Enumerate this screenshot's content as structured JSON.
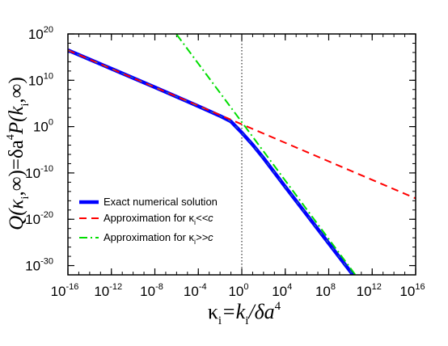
{
  "chart_data": {
    "type": "line",
    "x_scale": "log",
    "y_scale": "log",
    "xlim": [
      1e-16,
      1e+16
    ],
    "ylim": [
      1e-32,
      1e+20
    ],
    "x_ticks": [
      -16,
      -12,
      -8,
      -4,
      0,
      4,
      8,
      12,
      16
    ],
    "y_ticks": [
      -30,
      -20,
      -10,
      0,
      10,
      20
    ],
    "tick_base": "10",
    "xlabel": {
      "main": "κ",
      "sub": "i",
      "eq": "=k",
      "sub2": "i",
      "tail": "/δa",
      "sup": "4"
    },
    "ylabel": {
      "q": "Q(κ",
      "sub": "i",
      "mid": ",∞)=δa",
      "sup": "4",
      "p": "P(k",
      "sub2": "i",
      "end": ",∞)"
    },
    "reference_line_x": 1,
    "grid": false,
    "legend_position": "bottom-left",
    "legend": [
      {
        "text": "Exact numerical solution",
        "sub": "",
        "tail": ""
      },
      {
        "text": "Approximation for κ",
        "sub": "i",
        "tail": "<<c"
      },
      {
        "text": "Approximation for κ",
        "sub": "i",
        "tail": ">>c"
      }
    ],
    "series": [
      {
        "style": "solid-thick",
        "color": "#0000ff",
        "x_log": [
          -16,
          -12,
          -8,
          -4,
          -2,
          -1,
          0,
          1,
          2,
          4,
          8,
          12,
          16
        ],
        "y_log": [
          16.5,
          12.5,
          8.5,
          4.4,
          2.3,
          1.1,
          -1.3,
          -3.9,
          -6.8,
          -13.0,
          -25.2,
          -37.4,
          -49.5
        ]
      },
      {
        "style": "dashed",
        "color": "#ff0000",
        "x_log": [
          -16,
          16
        ],
        "y_log": [
          16.5,
          -15.5
        ]
      },
      {
        "style": "dashdot",
        "color": "#00dd00",
        "x_log": [
          -6,
          16
        ],
        "y_log": [
          19.9,
          -49.5
        ]
      }
    ]
  }
}
